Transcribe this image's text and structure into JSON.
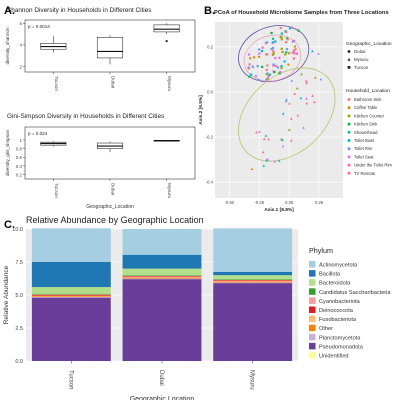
{
  "panels": {
    "a_letter": "A.",
    "b_letter": "B.",
    "c_letter": "C."
  },
  "chart_data": [
    {
      "id": "shannon",
      "type": "box",
      "title": "Shannon Diversity in Households in Different Cities",
      "annotation": "p = 0.0014",
      "xlabel": "",
      "ylabel": "diversity_shannon",
      "categories": [
        "Tucson",
        "Dubai",
        "Mysuru"
      ],
      "ylim": [
        1.5,
        6.3
      ],
      "yticks": [
        2,
        4,
        6
      ],
      "boxes": [
        {
          "min": 3.3,
          "q1": 3.6,
          "median": 3.85,
          "q3": 4.15,
          "max": 4.8,
          "outliers": []
        },
        {
          "min": 2.2,
          "q1": 2.8,
          "median": 3.4,
          "q3": 4.7,
          "max": 4.9,
          "outliers": []
        },
        {
          "min": 5.0,
          "q1": 5.2,
          "median": 5.45,
          "q3": 5.85,
          "max": 6.0,
          "outliers": [
            4.35
          ]
        }
      ]
    },
    {
      "id": "gini",
      "type": "box",
      "title": "Gini-Simpson Diversity in Households in Different Cities",
      "annotation": "p = 0.024",
      "xlabel": "Geographic_Location",
      "ylabel": "diversity_gini_simpson",
      "categories": [
        "Tucson",
        "Dubai",
        "Mysuru"
      ],
      "ylim": [
        0.1,
        1.3
      ],
      "yticks": [
        0.2,
        0.4,
        0.6,
        0.8,
        1.0
      ],
      "boxes": [
        {
          "min": 0.85,
          "q1": 0.88,
          "median": 0.92,
          "q3": 0.95,
          "max": 0.97,
          "outliers": []
        },
        {
          "min": 0.72,
          "q1": 0.8,
          "median": 0.86,
          "q3": 0.93,
          "max": 0.96,
          "outliers": []
        },
        {
          "min": 0.96,
          "q1": 0.975,
          "median": 0.985,
          "q3": 0.99,
          "max": 0.995,
          "outliers": []
        }
      ]
    },
    {
      "id": "pcoa",
      "type": "scatter",
      "title": "PCoA of Household Microbiome Samples from Three Locations",
      "xlabel": "Axis.1   [8.8%]",
      "ylabel": "Axis.2   [6.5%]",
      "xlim": [
        -0.62,
        0.45
      ],
      "ylim": [
        -0.47,
        0.31
      ],
      "xticks": [
        -0.5,
        -0.25,
        0.0,
        0.25
      ],
      "yticks": [
        -0.4,
        -0.2,
        0.0,
        0.2
      ],
      "legend_location_title": "Geographic_Location",
      "legend_locations": [
        {
          "name": "Dubai",
          "shape": "circle"
        },
        {
          "name": "Mysuru",
          "shape": "triangle"
        },
        {
          "name": "Tucson",
          "shape": "square"
        }
      ],
      "legend_household_title": "Household_Location",
      "legend_household": [
        {
          "name": "Bathroom Sink",
          "color": "#f8766d"
        },
        {
          "name": "Coffee Table",
          "color": "#d39200"
        },
        {
          "name": "Kitchen Counter",
          "color": "#93aa00"
        },
        {
          "name": "Kitchen Sink",
          "color": "#00ba38"
        },
        {
          "name": "Showerhead",
          "color": "#00c19f"
        },
        {
          "name": "Toilet Bowl",
          "color": "#00b9e3"
        },
        {
          "name": "Toilet Rim",
          "color": "#619cff"
        },
        {
          "name": "Toilet Seat",
          "color": "#db72fb"
        },
        {
          "name": "Under the Toilet Rim",
          "color": "#ff61c3"
        },
        {
          "name": "TV Remote",
          "color": "#ff6a98"
        }
      ],
      "ellipses": [
        {
          "group": "Tucson",
          "color": "#5b4fa8",
          "cx": -0.13,
          "cy": 0.17,
          "rx": 0.3,
          "ry": 0.12,
          "angle_deg": 18
        },
        {
          "group": "Mysuru",
          "color": "#b3c765",
          "cx": -0.02,
          "cy": -0.1,
          "rx": 0.46,
          "ry": 0.17,
          "angle_deg": 42
        },
        {
          "group": "Dubai",
          "color": "#e7a6b8",
          "cx": -0.14,
          "cy": 0.15,
          "rx": 0.24,
          "ry": 0.1,
          "angle_deg": 15
        }
      ]
    },
    {
      "id": "abundance",
      "type": "bar",
      "stacked": true,
      "title": "Relative Abundance by Geographic Location",
      "xlabel": "Geographic Location",
      "ylabel": "Relative Abundance",
      "ylim": [
        0,
        10
      ],
      "yticks": [
        0.0,
        2.5,
        5.0,
        7.5,
        10.0
      ],
      "categories": [
        "Tucson",
        "Dubai",
        "Mysuru"
      ],
      "legend_title": "Phylum",
      "series": [
        {
          "name": "Pseudomonadota",
          "color": "#6a3d9a",
          "values": [
            4.8,
            6.2,
            5.9
          ]
        },
        {
          "name": "Planctomycetota",
          "color": "#cab2d6",
          "values": [
            0.05,
            0.05,
            0.05
          ]
        },
        {
          "name": "Other",
          "color": "#ff7f00",
          "values": [
            0.05,
            0.05,
            0.05
          ]
        },
        {
          "name": "Fusobacteriota",
          "color": "#fdbf6f",
          "values": [
            0.05,
            0.05,
            0.05
          ]
        },
        {
          "name": "Deinococcota",
          "color": "#e31a1c",
          "values": [
            0.05,
            0.05,
            0.05
          ]
        },
        {
          "name": "Cyanobacteriota",
          "color": "#fb9a99",
          "values": [
            0.05,
            0.05,
            0.05
          ]
        },
        {
          "name": "Candidatus Saccharibacteria",
          "color": "#33a02c",
          "values": [
            0.05,
            0.05,
            0.05
          ]
        },
        {
          "name": "Bacteroidota",
          "color": "#b2df8a",
          "values": [
            0.5,
            0.5,
            0.3
          ]
        },
        {
          "name": "Bacillota",
          "color": "#1f78b4",
          "values": [
            1.9,
            1.05,
            0.25
          ]
        },
        {
          "name": "Actinomycetota",
          "color": "#a6cee3",
          "values": [
            2.55,
            1.95,
            3.3
          ]
        },
        {
          "name": "Unidentified",
          "color": "#ffff99",
          "values": [
            0.0,
            0.0,
            0.0
          ]
        }
      ],
      "legend_order": [
        "Actinomycetota",
        "Bacillota",
        "Bacteroidota",
        "Candidatus Saccharibacteria",
        "Cyanobacteriota",
        "Deinococcota",
        "Fusobacteriota",
        "Other",
        "Planctomycetota",
        "Pseudomonadota",
        "Unidentified"
      ]
    }
  ]
}
